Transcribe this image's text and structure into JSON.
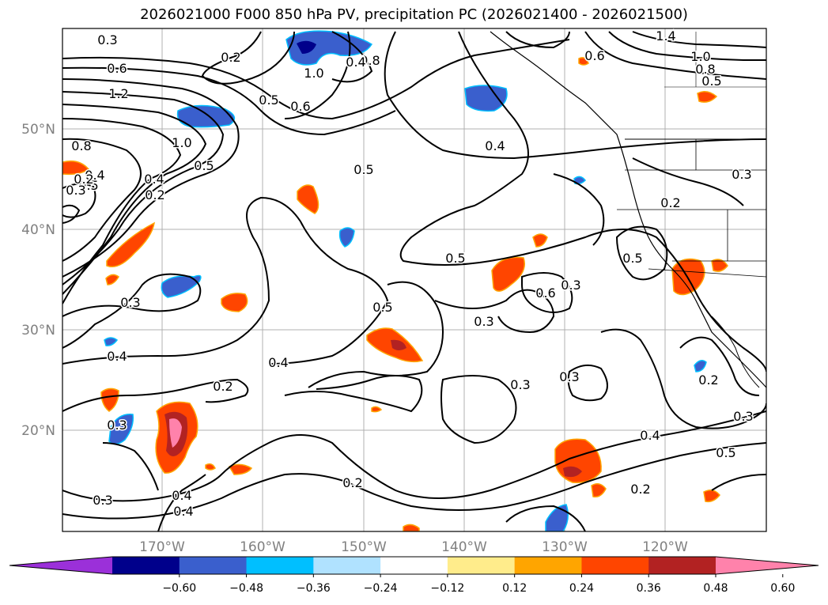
{
  "title": "2026021000 F000 850 hPa PV, precipitation PC (2026021400 - 2026021500)",
  "lat_labels": [
    "50°N",
    "40°N",
    "30°N",
    "20°N"
  ],
  "lon_labels": [
    "170°W",
    "160°W",
    "150°W",
    "140°W",
    "130°W",
    "120°W"
  ],
  "colorbar": {
    "colors": [
      "#9b30d9",
      "#00008b",
      "#3a5fcd",
      "#00bfff",
      "#b0e2ff",
      "#ffffff",
      "#ffec8b",
      "#ffa500",
      "#ff4500",
      "#b22222",
      "#ff82ab"
    ],
    "ticks": [
      "−0.60",
      "−0.48",
      "−0.36",
      "−0.24",
      "−0.12",
      "0.12",
      "0.24",
      "0.36",
      "0.48",
      "0.60"
    ]
  },
  "contour_labels": [
    "0.3",
    "0.6",
    "1.2",
    "0.8",
    "1.0",
    "0.5",
    "0.4",
    "0.2",
    "1.4",
    "1.0",
    "0.8",
    "0.5",
    "0.6",
    "0.4",
    "0.5",
    "0.8",
    "1.0",
    "0.6",
    "0.5",
    "0.4",
    "0.3",
    "0.2",
    "0.3",
    "0.5",
    "0.6",
    "0.3",
    "0.3",
    "0.5",
    "0.3",
    "0.4",
    "0.4",
    "0.2",
    "0.3",
    "0.4",
    "0.2",
    "0.2",
    "0.4",
    "0.3",
    "0.5",
    "0.3",
    "0.2",
    "0.5",
    "0.3",
    "0.4",
    "0.2",
    "0.4",
    "0.5",
    "0.3",
    "0.2"
  ]
}
